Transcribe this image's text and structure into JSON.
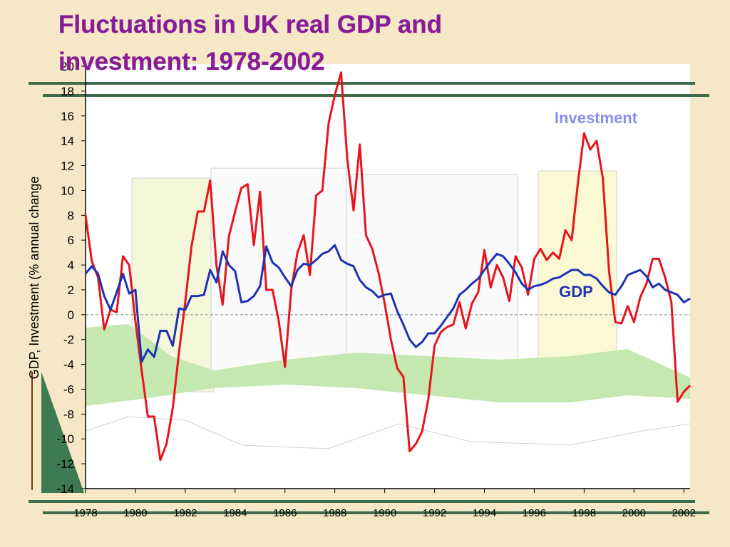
{
  "chart_data": {
    "type": "line",
    "title": "Fluctuations in UK real GDP and investment: 1978-2002",
    "y_label": "GDP, Investment (% annual change",
    "annotations": [
      "Investment",
      "GDP"
    ],
    "x": [
      1978,
      1978.25,
      1978.5,
      1978.75,
      1979,
      1979.25,
      1979.5,
      1979.75,
      1980,
      1980.25,
      1980.5,
      1980.75,
      1981,
      1981.25,
      1981.5,
      1981.75,
      1982,
      1982.25,
      1982.5,
      1982.75,
      1983,
      1983.25,
      1983.5,
      1983.75,
      1984,
      1984.25,
      1984.5,
      1984.75,
      1985,
      1985.25,
      1985.5,
      1985.75,
      1986,
      1986.25,
      1986.5,
      1986.75,
      1987,
      1987.25,
      1987.5,
      1987.75,
      1988,
      1988.25,
      1988.5,
      1988.75,
      1989,
      1989.25,
      1989.5,
      1989.75,
      1990,
      1990.25,
      1990.5,
      1990.75,
      1991,
      1991.25,
      1991.5,
      1991.75,
      1992,
      1992.25,
      1992.5,
      1992.75,
      1993,
      1993.25,
      1993.5,
      1993.75,
      1994,
      1994.25,
      1994.5,
      1994.75,
      1995,
      1995.25,
      1995.5,
      1995.75,
      1996,
      1996.25,
      1996.5,
      1996.75,
      1997,
      1997.25,
      1997.5,
      1997.75,
      1998,
      1998.25,
      1998.5,
      1998.75,
      1999,
      1999.25,
      1999.5,
      1999.75,
      2000,
      2000.25,
      2000.5,
      2000.75,
      2001,
      2001.25,
      2001.5,
      2001.75,
      2002,
      2002.25
    ],
    "series": [
      {
        "name": "Investment",
        "color": "#e8141b",
        "values": [
          8,
          4.3,
          3.0,
          -1.2,
          0.4,
          0.2,
          4.7,
          4.0,
          -0.5,
          -4.5,
          -8.2,
          -8.2,
          -11.7,
          -10.4,
          -7.5,
          -3,
          1,
          5.5,
          8.3,
          8.3,
          10.8,
          4,
          0.8,
          6.3,
          8.3,
          10.2,
          10.5,
          5.6,
          9.9,
          2.0,
          2.0,
          -0.5,
          -4.2,
          2.0,
          5.0,
          6.4,
          3.2,
          9.6,
          10,
          15.4,
          17.7,
          19.5,
          12.5,
          8.4,
          13.7,
          6.4,
          5.3,
          3.4,
          0.9,
          -2,
          -4.3,
          -5,
          -11,
          -10.4,
          -9.4,
          -6.8,
          -2.5,
          -1.4,
          -1,
          -0.8,
          1.0,
          -1.1,
          0.9,
          1.8,
          5.2,
          2.2,
          4,
          3,
          1.1,
          4.7,
          3.8,
          1.6,
          4.5,
          5.3,
          4.4,
          5,
          4.5,
          6.8,
          6.0,
          10.6,
          14.6,
          13.3,
          14,
          11,
          3.5,
          -0.6,
          -0.7,
          0.7,
          -0.6,
          1.4,
          2.5,
          4.5,
          4.5,
          3,
          1.0,
          -7,
          -6.2,
          -5.7
        ]
      },
      {
        "name": "GDP",
        "color": "#1e32b4",
        "values": [
          3.3,
          3.9,
          3.3,
          1.5,
          0.4,
          1.8,
          3.3,
          1.7,
          2.0,
          -3.8,
          -2.8,
          -3.4,
          -1.3,
          -1.3,
          -2.5,
          0.5,
          0.4,
          1.5,
          1.5,
          1.6,
          3.6,
          2.6,
          5.1,
          4.0,
          3.5,
          1.0,
          1.1,
          1.5,
          2.3,
          5.5,
          4.2,
          3.8,
          3.0,
          2.3,
          3.6,
          4.1,
          4.0,
          4.4,
          4.9,
          5.1,
          5.6,
          4.4,
          4.1,
          3.9,
          2.8,
          2.2,
          1.9,
          1.4,
          1.6,
          1.7,
          0.3,
          -0.8,
          -2.0,
          -2.6,
          -2.2,
          -1.5,
          -1.5,
          -0.9,
          -0.2,
          0.5,
          1.6,
          2.0,
          2.5,
          2.9,
          3.6,
          4.3,
          4.9,
          4.7,
          4.1,
          3.4,
          2.5,
          2.0,
          2.3,
          2.4,
          2.6,
          2.9,
          3.0,
          3.3,
          3.6,
          3.6,
          3.2,
          3.2,
          2.9,
          2.3,
          1.8,
          1.6,
          2.3,
          3.2,
          3.4,
          3.6,
          3.1,
          2.2,
          2.5,
          2.0,
          1.8,
          1.6,
          1.0,
          1.3
        ]
      }
    ],
    "xlim": [
      1978,
      2002.25
    ],
    "xticks": [
      1978,
      1980,
      1982,
      1984,
      1986,
      1988,
      1990,
      1992,
      1994,
      1996,
      1998,
      2000,
      2002
    ],
    "ylim": [
      -14,
      20
    ],
    "yticks": [
      -14,
      -12,
      -10,
      -8,
      -6,
      -4,
      -2,
      0,
      2,
      4,
      6,
      8,
      10,
      12,
      14,
      16,
      18,
      20
    ]
  }
}
